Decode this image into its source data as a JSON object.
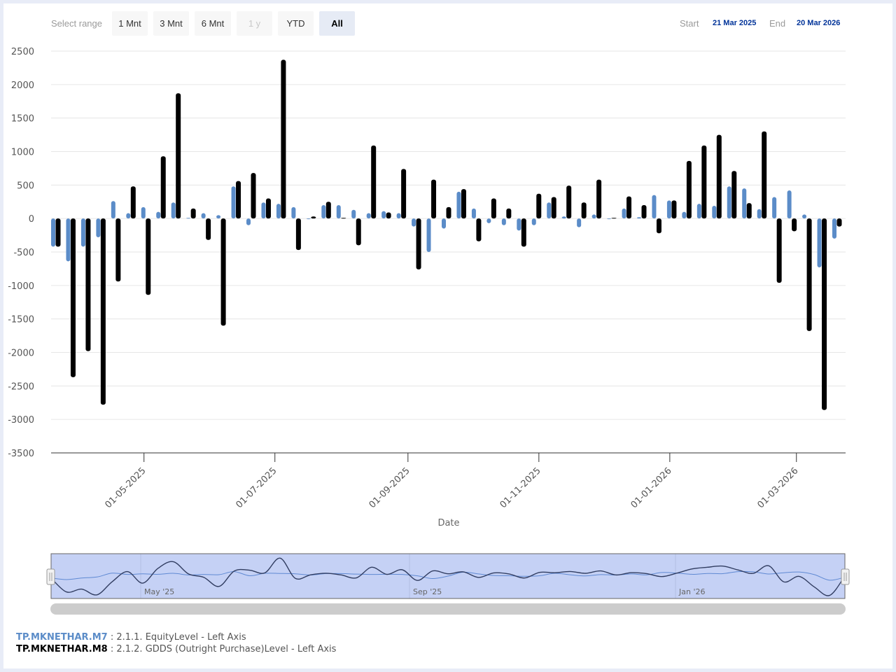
{
  "range_selector": {
    "label": "Select range",
    "buttons": [
      {
        "label": "1 Mnt",
        "state": "normal"
      },
      {
        "label": "3 Mnt",
        "state": "normal"
      },
      {
        "label": "6 Mnt",
        "state": "normal"
      },
      {
        "label": "1 y",
        "state": "disabled"
      },
      {
        "label": "YTD",
        "state": "normal"
      },
      {
        "label": "All",
        "state": "selected"
      }
    ]
  },
  "date_inputs": {
    "start_label": "Start",
    "start_value": "21 Mar 2025",
    "end_label": "End",
    "end_value": "20 Mar 2026"
  },
  "navigator": {
    "labels": [
      "May '25",
      "Sep '25",
      "Jan '26"
    ]
  },
  "legend": [
    {
      "code": "TP.MKNETHAR.M7",
      "text": " : 2.1.1. EquityLevel - Left Axis",
      "color": "#5b8cc8"
    },
    {
      "code": "TP.MKNETHAR.M8",
      "text": " : 2.1.2. GDDS (Outright Purchase)Level - Left Axis",
      "color": "#000000"
    }
  ],
  "chart_data": {
    "type": "bar",
    "xlabel": "Date",
    "ylabel": "",
    "ylim": [
      -3500,
      2500
    ],
    "yticks": [
      2500,
      2000,
      1500,
      1000,
      500,
      0,
      -500,
      -1000,
      -1500,
      -2000,
      -2500,
      -3000,
      -3500
    ],
    "xticks": [
      "01-05-2025",
      "01-07-2025",
      "01-09-2025",
      "01-11-2025",
      "01-01-2026",
      "01-03-2026"
    ],
    "grid": true,
    "categories": [
      "21-03-2025",
      "28-03-2025",
      "04-04-2025",
      "11-04-2025",
      "18-04-2025",
      "25-04-2025",
      "02-05-2025",
      "09-05-2025",
      "16-05-2025",
      "23-05-2025",
      "30-05-2025",
      "06-06-2025",
      "13-06-2025",
      "20-06-2025",
      "27-06-2025",
      "04-07-2025",
      "11-07-2025",
      "18-07-2025",
      "25-07-2025",
      "01-08-2025",
      "08-08-2025",
      "15-08-2025",
      "22-08-2025",
      "29-08-2025",
      "05-09-2025",
      "12-09-2025",
      "19-09-2025",
      "26-09-2025",
      "03-10-2025",
      "10-10-2025",
      "17-10-2025",
      "24-10-2025",
      "31-10-2025",
      "07-11-2025",
      "14-11-2025",
      "21-11-2025",
      "28-11-2025",
      "05-12-2025",
      "12-12-2025",
      "19-12-2025",
      "26-12-2025",
      "02-01-2026",
      "09-01-2026",
      "16-01-2026",
      "23-01-2026",
      "30-01-2026",
      "06-02-2026",
      "13-02-2026",
      "20-02-2026",
      "27-02-2026",
      "06-03-2026",
      "13-03-2026",
      "20-03-2026"
    ],
    "series": [
      {
        "name": "TP.MKNETHAR.M7",
        "color": "#5b8cc8",
        "values": [
          -420,
          -640,
          -420,
          -280,
          260,
          80,
          170,
          100,
          240,
          10,
          80,
          50,
          480,
          -100,
          240,
          220,
          170,
          0,
          200,
          200,
          130,
          80,
          110,
          80,
          -120,
          -500,
          -150,
          400,
          150,
          -70,
          -100,
          -180,
          -100,
          240,
          30,
          -130,
          60,
          0,
          150,
          20,
          350,
          270,
          100,
          220,
          190,
          480,
          450,
          140,
          320,
          420,
          60,
          -730,
          -300
        ]
      },
      {
        "name": "TP.MKNETHAR.M8",
        "color": "#000000",
        "values": [
          -420,
          -2370,
          -1980,
          -2780,
          -940,
          480,
          -1140,
          930,
          1870,
          150,
          -320,
          -1600,
          560,
          680,
          300,
          2370,
          -470,
          30,
          250,
          10,
          -400,
          1090,
          90,
          740,
          -760,
          580,
          170,
          440,
          -340,
          300,
          150,
          -420,
          370,
          320,
          490,
          240,
          580,
          10,
          330,
          200,
          -220,
          270,
          860,
          1090,
          1250,
          710,
          230,
          1300,
          -960,
          -190,
          -1680,
          -2860,
          -120
        ]
      }
    ]
  }
}
